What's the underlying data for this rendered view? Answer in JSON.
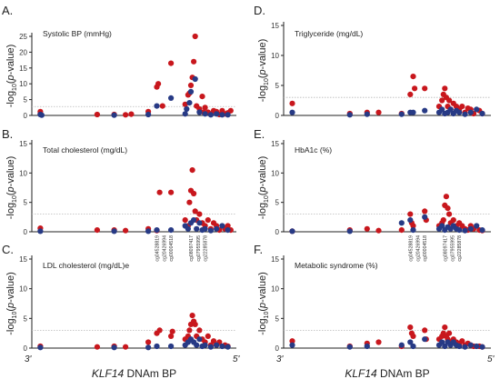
{
  "colors": {
    "series1": "#c8171d",
    "series2": "#273a85",
    "axis": "#222222",
    "threshold": "#b8b8b8"
  },
  "xaxis": {
    "label_italic": "KLF14",
    "label_rest": " DNAm BP",
    "left_end": "3'",
    "right_end": "5'"
  },
  "ylabel": {
    "prefix": "-log",
    "sub": "10",
    "mid_open": "(",
    "italic": "p",
    "mid_close": "-value)"
  },
  "probes": [
    [
      "cg04528819",
      "cg20426994",
      "cg00004518"
    ],
    [
      "cg08097417",
      "cg07955995",
      "cg22285878"
    ]
  ],
  "chart_data": [
    {
      "type": "scatter",
      "panel": "A.",
      "title": "Systolic BP (mmHg)",
      "ylim": [
        0,
        25
      ],
      "yticks": [
        0,
        5,
        10,
        15,
        20,
        25
      ],
      "threshold": 2.8,
      "series1": [
        [
          1,
          0.5
        ],
        [
          1,
          1.2
        ],
        [
          3,
          0.3
        ],
        [
          3.6,
          0.3
        ],
        [
          4,
          0.2
        ],
        [
          4.2,
          0.4
        ],
        [
          4.8,
          1.2
        ],
        [
          5.1,
          9
        ],
        [
          5.15,
          10
        ],
        [
          5.3,
          3
        ],
        [
          5.6,
          16.5
        ],
        [
          6.1,
          3.5
        ],
        [
          6.2,
          6.5
        ],
        [
          6.25,
          7
        ],
        [
          6.3,
          9.5
        ],
        [
          6.35,
          12
        ],
        [
          6.4,
          17
        ],
        [
          6.45,
          25
        ],
        [
          6.5,
          3
        ],
        [
          6.6,
          2
        ],
        [
          6.7,
          6
        ],
        [
          6.75,
          1
        ],
        [
          6.8,
          2.5
        ],
        [
          6.9,
          1
        ],
        [
          7.0,
          0.5
        ],
        [
          7.1,
          1.5
        ],
        [
          7.2,
          1.2
        ],
        [
          7.3,
          0.3
        ],
        [
          7.4,
          1.5
        ],
        [
          7.5,
          0.5
        ],
        [
          7.6,
          0.8
        ],
        [
          7.7,
          1.5
        ]
      ],
      "series2": [
        [
          1,
          0.3
        ],
        [
          1.05,
          0.1
        ],
        [
          3.6,
          0.1
        ],
        [
          4.8,
          0.3
        ],
        [
          5.1,
          3
        ],
        [
          5.6,
          5.5
        ],
        [
          6.1,
          0.5
        ],
        [
          6.15,
          2
        ],
        [
          6.25,
          4
        ],
        [
          6.3,
          7.5
        ],
        [
          6.45,
          11.5
        ],
        [
          6.6,
          1
        ],
        [
          6.8,
          0.5
        ],
        [
          7.0,
          0.2
        ],
        [
          7.2,
          0.5
        ],
        [
          7.4,
          0.2
        ],
        [
          7.6,
          0.2
        ]
      ]
    },
    {
      "type": "scatter",
      "panel": "B.",
      "title": "Total cholesterol (mg/dL)",
      "ylim": [
        0,
        15
      ],
      "yticks": [
        0,
        5,
        10,
        15
      ],
      "threshold": 3,
      "series1": [
        [
          1,
          0.6
        ],
        [
          3,
          0.3
        ],
        [
          3.6,
          0.3
        ],
        [
          4,
          0.2
        ],
        [
          4.8,
          0.5
        ],
        [
          5.1,
          0.2
        ],
        [
          5.2,
          6.7
        ],
        [
          5.6,
          6.7
        ],
        [
          6.1,
          2
        ],
        [
          6.2,
          1
        ],
        [
          6.25,
          5
        ],
        [
          6.3,
          7
        ],
        [
          6.35,
          10.5
        ],
        [
          6.4,
          6.5
        ],
        [
          6.45,
          3.5
        ],
        [
          6.5,
          2
        ],
        [
          6.6,
          3
        ],
        [
          6.7,
          1.5
        ],
        [
          6.8,
          1
        ],
        [
          6.9,
          2
        ],
        [
          7.0,
          0.5
        ],
        [
          7.1,
          1.5
        ],
        [
          7.2,
          1
        ],
        [
          7.3,
          0.3
        ],
        [
          7.5,
          0.5
        ],
        [
          7.6,
          1
        ],
        [
          7.7,
          0.3
        ]
      ],
      "series2": [
        [
          1,
          0.1
        ],
        [
          3.6,
          0.1
        ],
        [
          4.8,
          0.1
        ],
        [
          5.1,
          0.3
        ],
        [
          5.6,
          0.3
        ],
        [
          6.1,
          1
        ],
        [
          6.2,
          0.5
        ],
        [
          6.3,
          1.5
        ],
        [
          6.4,
          2
        ],
        [
          6.5,
          0.5
        ],
        [
          6.6,
          1.5
        ],
        [
          6.7,
          0.3
        ],
        [
          6.8,
          0.5
        ],
        [
          7.0,
          0.2
        ],
        [
          7.2,
          0.5
        ],
        [
          7.4,
          1
        ],
        [
          7.6,
          0.3
        ]
      ]
    },
    {
      "type": "scatter",
      "panel": "C.",
      "title": "LDL cholesterol (mg/dL)e",
      "ylim": [
        0,
        15
      ],
      "yticks": [
        0,
        5,
        10,
        15
      ],
      "threshold": 3,
      "series1": [
        [
          1,
          0.3
        ],
        [
          3,
          0.2
        ],
        [
          3.6,
          0.3
        ],
        [
          4,
          0.2
        ],
        [
          4.8,
          1
        ],
        [
          5.1,
          2.5
        ],
        [
          5.2,
          3
        ],
        [
          5.6,
          2
        ],
        [
          5.65,
          2.8
        ],
        [
          6.1,
          1.5
        ],
        [
          6.2,
          2
        ],
        [
          6.25,
          3
        ],
        [
          6.3,
          4
        ],
        [
          6.35,
          5.5
        ],
        [
          6.4,
          4.5
        ],
        [
          6.45,
          4
        ],
        [
          6.5,
          2
        ],
        [
          6.6,
          3
        ],
        [
          6.7,
          1.5
        ],
        [
          6.8,
          1
        ],
        [
          6.9,
          2
        ],
        [
          7.0,
          0.5
        ],
        [
          7.1,
          1.2
        ],
        [
          7.2,
          0.5
        ],
        [
          7.3,
          1
        ],
        [
          7.5,
          0.5
        ],
        [
          7.6,
          0.3
        ]
      ],
      "series2": [
        [
          1,
          0.1
        ],
        [
          3.6,
          0.1
        ],
        [
          4.8,
          0.1
        ],
        [
          5.1,
          0.3
        ],
        [
          5.6,
          0.3
        ],
        [
          6.1,
          0.5
        ],
        [
          6.2,
          1
        ],
        [
          6.3,
          1.5
        ],
        [
          6.4,
          1
        ],
        [
          6.5,
          0.5
        ],
        [
          6.6,
          1.5
        ],
        [
          6.7,
          0.3
        ],
        [
          6.8,
          0.5
        ],
        [
          7.0,
          0.2
        ],
        [
          7.2,
          0.5
        ],
        [
          7.4,
          0.3
        ],
        [
          7.6,
          0.2
        ]
      ]
    },
    {
      "type": "scatter",
      "panel": "D.",
      "title": "Triglyceride (mg/dL)",
      "ylim": [
        0,
        15
      ],
      "yticks": [
        0,
        5,
        10,
        15
      ],
      "threshold": 3,
      "series1": [
        [
          1,
          2
        ],
        [
          3,
          0.3
        ],
        [
          3.6,
          0.5
        ],
        [
          4,
          0.5
        ],
        [
          4.8,
          0.3
        ],
        [
          5.1,
          3.5
        ],
        [
          5.2,
          6.5
        ],
        [
          5.25,
          4.5
        ],
        [
          5.6,
          4.5
        ],
        [
          6.1,
          1.5
        ],
        [
          6.2,
          2.5
        ],
        [
          6.25,
          3.5
        ],
        [
          6.3,
          4.5
        ],
        [
          6.35,
          3
        ],
        [
          6.4,
          1.5
        ],
        [
          6.45,
          2.5
        ],
        [
          6.5,
          1
        ],
        [
          6.6,
          2
        ],
        [
          6.7,
          1.5
        ],
        [
          6.8,
          1
        ],
        [
          6.9,
          1.5
        ],
        [
          7.0,
          0.5
        ],
        [
          7.1,
          1.2
        ],
        [
          7.2,
          1
        ],
        [
          7.3,
          0.3
        ],
        [
          7.5,
          0.8
        ],
        [
          7.6,
          0.3
        ]
      ],
      "series2": [
        [
          1,
          0.5
        ],
        [
          3,
          0.1
        ],
        [
          3.6,
          0.2
        ],
        [
          4.8,
          0.2
        ],
        [
          5.1,
          0.5
        ],
        [
          5.2,
          0.5
        ],
        [
          5.6,
          0.8
        ],
        [
          6.1,
          0.5
        ],
        [
          6.2,
          1
        ],
        [
          6.3,
          0.3
        ],
        [
          6.4,
          0.5
        ],
        [
          6.5,
          1
        ],
        [
          6.6,
          0.3
        ],
        [
          6.7,
          0.8
        ],
        [
          6.8,
          0.5
        ],
        [
          7.0,
          0.2
        ],
        [
          7.2,
          0.5
        ],
        [
          7.4,
          1
        ],
        [
          7.6,
          0.3
        ]
      ]
    },
    {
      "type": "scatter",
      "panel": "E.",
      "title": "HbA1c (%)",
      "ylim": [
        0,
        15
      ],
      "yticks": [
        0,
        5,
        10,
        15
      ],
      "threshold": 3,
      "series1": [
        [
          1,
          0.1
        ],
        [
          3,
          0.3
        ],
        [
          3.6,
          0.5
        ],
        [
          4,
          0.2
        ],
        [
          4.8,
          0.3
        ],
        [
          5.1,
          3
        ],
        [
          5.15,
          1.5
        ],
        [
          5.2,
          1
        ],
        [
          5.6,
          3.5
        ],
        [
          5.65,
          2
        ],
        [
          6.1,
          1
        ],
        [
          6.2,
          1.5
        ],
        [
          6.25,
          2
        ],
        [
          6.3,
          4.5
        ],
        [
          6.35,
          6
        ],
        [
          6.4,
          4
        ],
        [
          6.45,
          3
        ],
        [
          6.5,
          1.5
        ],
        [
          6.6,
          2
        ],
        [
          6.7,
          1
        ],
        [
          6.8,
          1.5
        ],
        [
          6.9,
          1
        ],
        [
          7.0,
          0.5
        ],
        [
          7.1,
          0.3
        ],
        [
          7.2,
          1
        ],
        [
          7.3,
          0.5
        ],
        [
          7.5,
          0.3
        ],
        [
          7.6,
          0.2
        ]
      ],
      "series2": [
        [
          1,
          0.1
        ],
        [
          3,
          0.1
        ],
        [
          4.8,
          1.5
        ],
        [
          5.1,
          2
        ],
        [
          5.2,
          0.3
        ],
        [
          5.6,
          2.5
        ],
        [
          6.1,
          0.5
        ],
        [
          6.2,
          1
        ],
        [
          6.3,
          0.3
        ],
        [
          6.4,
          0.8
        ],
        [
          6.5,
          0.5
        ],
        [
          6.6,
          1
        ],
        [
          6.7,
          0.5
        ],
        [
          6.8,
          0.3
        ],
        [
          7.0,
          0.2
        ],
        [
          7.2,
          0.5
        ],
        [
          7.4,
          1
        ],
        [
          7.6,
          0.3
        ]
      ]
    },
    {
      "type": "scatter",
      "panel": "F.",
      "title": "Metabolic syndrome (%)",
      "ylim": [
        0,
        15
      ],
      "yticks": [
        0,
        5,
        10,
        15
      ],
      "threshold": 3,
      "series1": [
        [
          1,
          1.2
        ],
        [
          3,
          0.3
        ],
        [
          3.6,
          0.8
        ],
        [
          4,
          1
        ],
        [
          4.8,
          0.3
        ],
        [
          5.1,
          3.5
        ],
        [
          5.15,
          2.5
        ],
        [
          5.2,
          2
        ],
        [
          5.6,
          3
        ],
        [
          5.65,
          1.5
        ],
        [
          6.1,
          1.5
        ],
        [
          6.2,
          2
        ],
        [
          6.25,
          2.5
        ],
        [
          6.3,
          3.5
        ],
        [
          6.35,
          2
        ],
        [
          6.4,
          1.5
        ],
        [
          6.45,
          2.5
        ],
        [
          6.5,
          1
        ],
        [
          6.6,
          1.5
        ],
        [
          6.7,
          1
        ],
        [
          6.8,
          0.8
        ],
        [
          6.9,
          1.2
        ],
        [
          7.0,
          0.5
        ],
        [
          7.1,
          0.8
        ],
        [
          7.2,
          0.5
        ],
        [
          7.3,
          0.3
        ],
        [
          7.5,
          0.3
        ],
        [
          7.6,
          0.2
        ]
      ],
      "series2": [
        [
          1,
          0.5
        ],
        [
          3,
          0.2
        ],
        [
          3.6,
          0.3
        ],
        [
          4.8,
          0.5
        ],
        [
          5.1,
          1
        ],
        [
          5.2,
          0.3
        ],
        [
          5.6,
          1.5
        ],
        [
          6.1,
          0.5
        ],
        [
          6.2,
          1
        ],
        [
          6.3,
          0.3
        ],
        [
          6.4,
          1
        ],
        [
          6.5,
          0.5
        ],
        [
          6.6,
          1
        ],
        [
          6.7,
          0.5
        ],
        [
          6.8,
          0.3
        ],
        [
          7.0,
          0.2
        ],
        [
          7.2,
          0.5
        ],
        [
          7.4,
          0.3
        ],
        [
          7.6,
          0.2
        ]
      ]
    }
  ]
}
